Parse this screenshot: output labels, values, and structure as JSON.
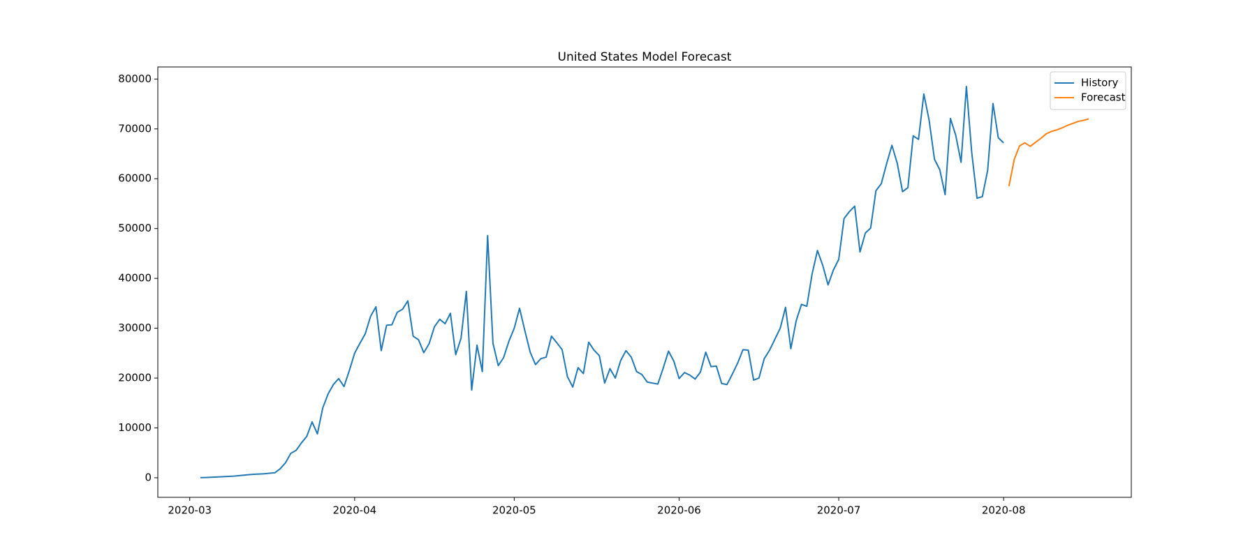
{
  "chart_data": {
    "type": "line",
    "title": "United States Model Forecast",
    "xlim": [
      "2020-02-24",
      "2020-08-25"
    ],
    "xticks": [
      {
        "value": "2020-03-01",
        "label": "2020-03"
      },
      {
        "value": "2020-04-01",
        "label": "2020-04"
      },
      {
        "value": "2020-05-01",
        "label": "2020-05"
      },
      {
        "value": "2020-06-01",
        "label": "2020-06"
      },
      {
        "value": "2020-07-01",
        "label": "2020-07"
      },
      {
        "value": "2020-08-01",
        "label": "2020-08"
      }
    ],
    "ylim": [
      -3925,
      82425
    ],
    "yticks": [
      0,
      10000,
      20000,
      30000,
      40000,
      50000,
      60000,
      70000,
      80000
    ],
    "legend": "upper right",
    "series": [
      {
        "name": "History",
        "color": "#1f77b4",
        "x": [
          "2020-03-03",
          "2020-03-04",
          "2020-03-05",
          "2020-03-06",
          "2020-03-07",
          "2020-03-08",
          "2020-03-09",
          "2020-03-10",
          "2020-03-11",
          "2020-03-12",
          "2020-03-13",
          "2020-03-14",
          "2020-03-15",
          "2020-03-16",
          "2020-03-17",
          "2020-03-18",
          "2020-03-19",
          "2020-03-20",
          "2020-03-21",
          "2020-03-22",
          "2020-03-23",
          "2020-03-24",
          "2020-03-25",
          "2020-03-26",
          "2020-03-27",
          "2020-03-28",
          "2020-03-29",
          "2020-03-30",
          "2020-03-31",
          "2020-04-01",
          "2020-04-02",
          "2020-04-03",
          "2020-04-04",
          "2020-04-05",
          "2020-04-06",
          "2020-04-07",
          "2020-04-08",
          "2020-04-09",
          "2020-04-10",
          "2020-04-11",
          "2020-04-12",
          "2020-04-13",
          "2020-04-14",
          "2020-04-15",
          "2020-04-16",
          "2020-04-17",
          "2020-04-18",
          "2020-04-19",
          "2020-04-20",
          "2020-04-21",
          "2020-04-22",
          "2020-04-23",
          "2020-04-24",
          "2020-04-25",
          "2020-04-26",
          "2020-04-27",
          "2020-04-28",
          "2020-04-29",
          "2020-04-30",
          "2020-05-01",
          "2020-05-02",
          "2020-05-03",
          "2020-05-04",
          "2020-05-05",
          "2020-05-06",
          "2020-05-07",
          "2020-05-08",
          "2020-05-09",
          "2020-05-10",
          "2020-05-11",
          "2020-05-12",
          "2020-05-13",
          "2020-05-14",
          "2020-05-15",
          "2020-05-16",
          "2020-05-17",
          "2020-05-18",
          "2020-05-19",
          "2020-05-20",
          "2020-05-21",
          "2020-05-22",
          "2020-05-23",
          "2020-05-24",
          "2020-05-25",
          "2020-05-26",
          "2020-05-27",
          "2020-05-28",
          "2020-05-29",
          "2020-05-30",
          "2020-05-31",
          "2020-06-01",
          "2020-06-02",
          "2020-06-03",
          "2020-06-04",
          "2020-06-05",
          "2020-06-06",
          "2020-06-07",
          "2020-06-08",
          "2020-06-09",
          "2020-06-10",
          "2020-06-11",
          "2020-06-12",
          "2020-06-13",
          "2020-06-14",
          "2020-06-15",
          "2020-06-16",
          "2020-06-17",
          "2020-06-18",
          "2020-06-19",
          "2020-06-20",
          "2020-06-21",
          "2020-06-22",
          "2020-06-23",
          "2020-06-24",
          "2020-06-25",
          "2020-06-26",
          "2020-06-27",
          "2020-06-28",
          "2020-06-29",
          "2020-06-30",
          "2020-07-01",
          "2020-07-02",
          "2020-07-03",
          "2020-07-04",
          "2020-07-05",
          "2020-07-06",
          "2020-07-07",
          "2020-07-08",
          "2020-07-09",
          "2020-07-10",
          "2020-07-11",
          "2020-07-12",
          "2020-07-13",
          "2020-07-14",
          "2020-07-15",
          "2020-07-16",
          "2020-07-17",
          "2020-07-18",
          "2020-07-19",
          "2020-07-20",
          "2020-07-21",
          "2020-07-22",
          "2020-07-23",
          "2020-07-24",
          "2020-07-25",
          "2020-07-26",
          "2020-07-27",
          "2020-07-28",
          "2020-07-29",
          "2020-07-30",
          "2020-07-31",
          "2020-08-01"
        ],
        "values": [
          20,
          50,
          100,
          150,
          200,
          250,
          300,
          400,
          500,
          600,
          700,
          750,
          800,
          900,
          1000,
          1800,
          3000,
          4900,
          5500,
          7000,
          8300,
          11200,
          8800,
          14000,
          16800,
          18700,
          19900,
          18300,
          21500,
          25000,
          27000,
          28900,
          32400,
          34300,
          25500,
          30600,
          30700,
          33200,
          33800,
          35500,
          28400,
          27700,
          25100,
          26900,
          30300,
          31800,
          30900,
          33000,
          24700,
          28000,
          37400,
          17600,
          26600,
          21300,
          48600,
          27000,
          22500,
          24100,
          27400,
          30000,
          34000,
          29500,
          25200,
          22700,
          23900,
          24200,
          28400,
          27100,
          25700,
          20300,
          18200,
          22100,
          20900,
          27200,
          25600,
          24500,
          19000,
          21900,
          20000,
          23500,
          25500,
          24200,
          21300,
          20700,
          19200,
          19000,
          18800,
          22000,
          25400,
          23400,
          19900,
          21100,
          20600,
          19800,
          21200,
          25200,
          22300,
          22400,
          18900,
          18700,
          20800,
          23000,
          25700,
          25600,
          19600,
          20000,
          23900,
          25600,
          27800,
          30000,
          34200,
          25900,
          31500,
          34800,
          34400,
          40900,
          45600,
          42600,
          38700,
          41700,
          43800,
          52000,
          53400,
          54500,
          45300,
          49100,
          50100,
          57600,
          59000,
          63000,
          66700,
          63100,
          57400,
          58200,
          68600,
          67900,
          77000,
          71700,
          63900,
          61800,
          56800,
          72100,
          68700,
          63300,
          78500,
          65300,
          56100,
          56400,
          61700,
          75100,
          68200,
          67200
        ]
      },
      {
        "name": "Forecast",
        "color": "#ff7f0e",
        "x": [
          "2020-08-02",
          "2020-08-03",
          "2020-08-04",
          "2020-08-05",
          "2020-08-06",
          "2020-08-07",
          "2020-08-08",
          "2020-08-09",
          "2020-08-10",
          "2020-08-11",
          "2020-08-12",
          "2020-08-13",
          "2020-08-14",
          "2020-08-15",
          "2020-08-16",
          "2020-08-17"
        ],
        "values": [
          58500,
          63900,
          66600,
          67200,
          66500,
          67300,
          68100,
          69000,
          69500,
          69800,
          70200,
          70700,
          71100,
          71500,
          71700,
          72000
        ]
      }
    ]
  }
}
